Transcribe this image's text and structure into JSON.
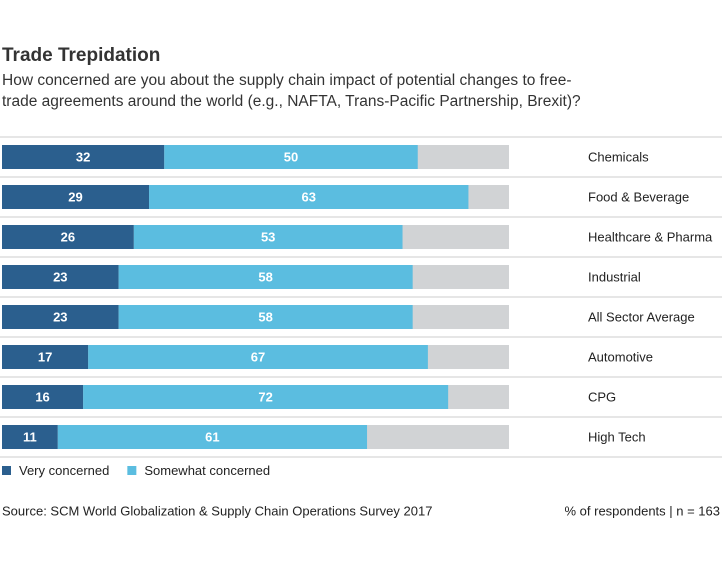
{
  "chart_data": {
    "type": "stacked-bar-horizontal",
    "title": "Trade Trepidation",
    "subtitle": "How concerned are you about the supply chain impact of potential changes to free-trade agreements around the world (e.g., NAFTA, Trans-Pacific Partnership, Brexit)?",
    "categories": [
      "Chemicals",
      "Food & Beverage",
      "Healthcare & Pharma",
      "Industrial",
      "All Sector Average",
      "Automotive",
      "CPG",
      "High Tech"
    ],
    "series": [
      {
        "name": "Very concerned",
        "color": "#2b5f8e",
        "values": [
          32,
          29,
          26,
          23,
          23,
          17,
          16,
          11
        ]
      },
      {
        "name": "Somewhat concerned",
        "color": "#5bbde0",
        "values": [
          50,
          63,
          53,
          58,
          58,
          67,
          72,
          61
        ]
      }
    ],
    "xlim": [
      0,
      100
    ],
    "track_color": "#d1d3d5",
    "source": "Source: SCM World Globalization & Supply Chain Operations Survey 2017",
    "note": "% of respondents | n = 163"
  }
}
